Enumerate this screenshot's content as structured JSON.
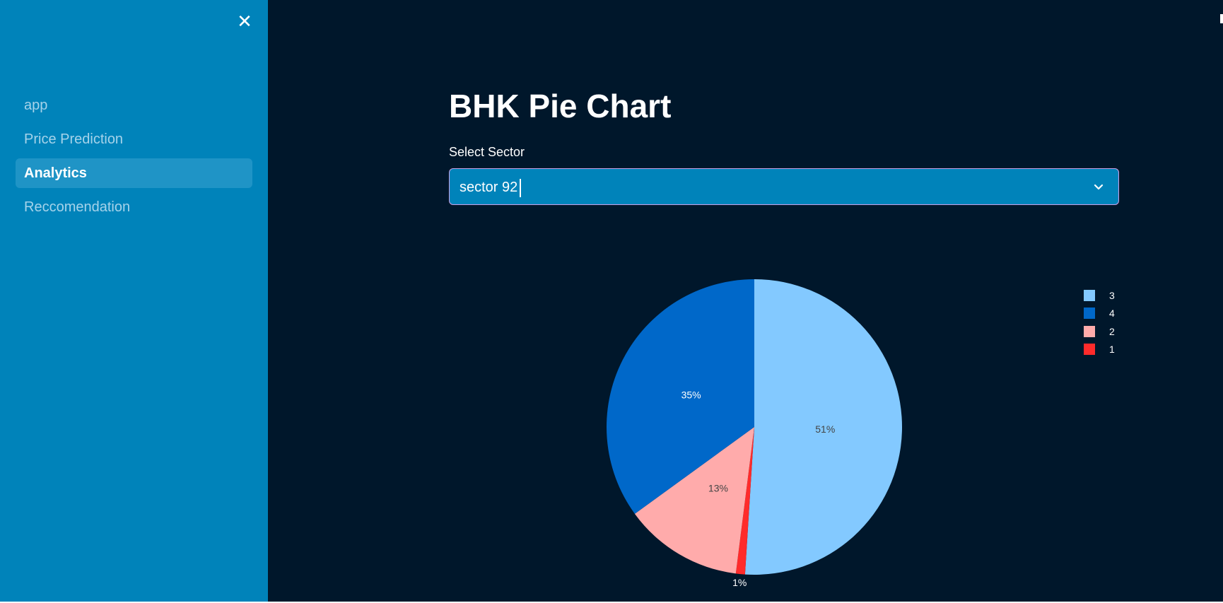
{
  "sidebar": {
    "close_icon": "close-icon",
    "items": [
      {
        "label": "app",
        "active": false
      },
      {
        "label": "Price Prediction",
        "active": false
      },
      {
        "label": "Analytics",
        "active": true
      },
      {
        "label": "Reccomendation",
        "active": false
      }
    ]
  },
  "main": {
    "title": "BHK Pie Chart",
    "select": {
      "label": "Select Sector",
      "value": "sector 92",
      "chevron_icon": "chevron-down-icon"
    }
  },
  "colors": {
    "sidebar_bg": "#0083BA",
    "main_bg": "#00172B",
    "select_bg": "#0083BA",
    "active_nav_bg": "#1F94C6"
  },
  "chart_data": {
    "type": "pie",
    "title": "",
    "slices": [
      {
        "label": "3",
        "value": 51,
        "color": "#83C9FF",
        "text": "51%",
        "text_color": "#444444"
      },
      {
        "label": "1",
        "value": 1,
        "color": "#FF2B2B",
        "text": "1%",
        "text_color": "#ffffff"
      },
      {
        "label": "2",
        "value": 13,
        "color": "#FFABAB",
        "text": "13%",
        "text_color": "#444444"
      },
      {
        "label": "4",
        "value": 35,
        "color": "#0068C9",
        "text": "35%",
        "text_color": "#ffffff"
      }
    ],
    "legend": [
      {
        "label": "3",
        "color": "#83C9FF"
      },
      {
        "label": "4",
        "color": "#0068C9"
      },
      {
        "label": "2",
        "color": "#FFABAB"
      },
      {
        "label": "1",
        "color": "#FF2B2B"
      }
    ],
    "legend_position": "top-right"
  }
}
